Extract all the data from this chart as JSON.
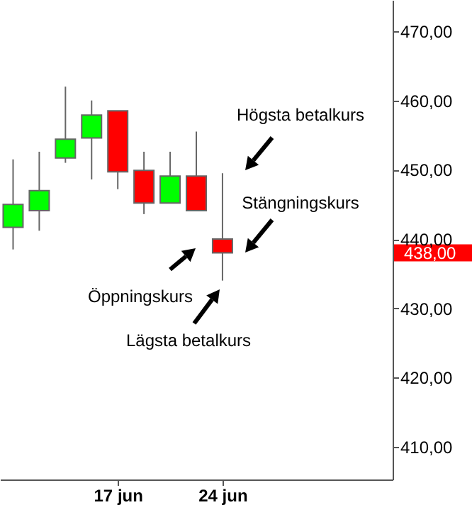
{
  "chart_data": {
    "type": "candlestick",
    "categories": [
      null,
      null,
      null,
      null,
      "17 jun",
      null,
      null,
      null,
      "24 jun",
      null,
      null,
      null,
      null,
      null,
      null
    ],
    "ohlc": [
      [
        441.7,
        451.5,
        438.5,
        445.0
      ],
      [
        444.1,
        452.6,
        441.2,
        447.0
      ],
      [
        451.7,
        462.0,
        451.0,
        454.4
      ],
      [
        454.6,
        460.0,
        448.6,
        457.9
      ],
      [
        458.5,
        458.5,
        447.2,
        449.7
      ],
      [
        449.9,
        452.6,
        443.6,
        445.2
      ],
      [
        445.2,
        452.6,
        445.2,
        449.1
      ],
      [
        449.1,
        455.5,
        444.1,
        444.1
      ],
      [
        440.0,
        449.5,
        434.0,
        438.0
      ],
      null,
      null,
      null,
      null,
      null,
      null
    ],
    "colors": [
      "#00ff00",
      "#00ff00",
      "#00ff00",
      "#00ff00",
      "#ff0000",
      "#ff0000",
      "#00ff00",
      "#ff0000",
      "#ff0000",
      null,
      null,
      null,
      null,
      null,
      null
    ],
    "ylim": [
      405.3,
      474.5
    ],
    "yticks": [
      {
        "value": 410,
        "label": "410,00"
      },
      {
        "value": 420,
        "label": "420,00"
      },
      {
        "value": 430,
        "label": "430,00"
      },
      {
        "value": 440,
        "label": "440,00"
      },
      {
        "value": 450,
        "label": "450,00"
      },
      {
        "value": 460,
        "label": "460,00"
      },
      {
        "value": 470,
        "label": "470,00"
      }
    ],
    "grid": false,
    "ref_lines": [
      {
        "axis": "y",
        "value": 438,
        "label": "438,00",
        "color": "#ff0000"
      }
    ],
    "annotations": [
      "Högsta betalkurs",
      "Stängningskurs",
      "Öppningskurs",
      "Lägsta betalkurs"
    ]
  }
}
